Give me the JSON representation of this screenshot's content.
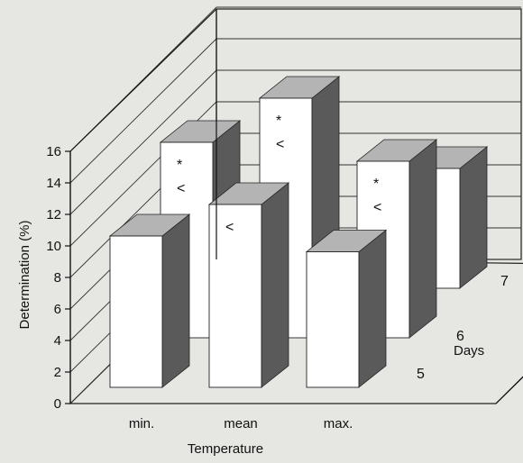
{
  "chart_data": {
    "type": "bar",
    "subtype": "3d-grouped",
    "ylabel": "Determination (%)",
    "xlabel": "Temperature",
    "zlabel": "Days",
    "yticks": [
      0,
      2,
      4,
      6,
      8,
      10,
      12,
      14,
      16
    ],
    "ylim": [
      0,
      16
    ],
    "categories": [
      "min.",
      "mean",
      "max."
    ],
    "series": [
      {
        "name": "5",
        "values": [
          9.6,
          11.6,
          8.6
        ],
        "markers": [
          "",
          "<",
          ""
        ]
      },
      {
        "name": "6",
        "values": [
          12.4,
          15.2,
          11.2
        ],
        "markers": [
          "* <",
          "* <",
          "* <"
        ]
      },
      {
        "name": "7",
        "values": [
          null,
          null,
          7.6
        ],
        "markers": [
          "",
          "",
          ""
        ]
      }
    ],
    "grid": true,
    "colors": {
      "front": "#ffffff",
      "side": "#5a5a5a",
      "top": "#b4b4b4",
      "background": "#e6e6e3"
    }
  }
}
